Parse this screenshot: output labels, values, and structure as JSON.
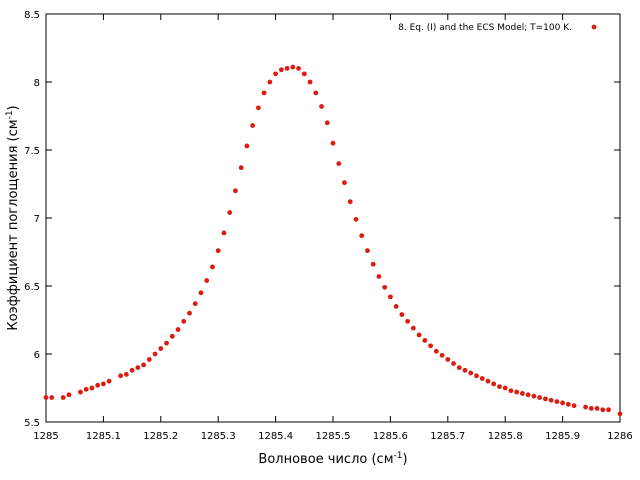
{
  "chart_data": {
    "type": "scatter",
    "xlabel": {
      "main": "Волновое число (см",
      "sup": "-1",
      "tail": ")"
    },
    "ylabel": {
      "main": "Коэффициент поглощения (см",
      "sup": "-1",
      "tail": ")"
    },
    "xlim": [
      1285,
      1286
    ],
    "ylim": [
      5.5,
      8.5
    ],
    "x_ticks": [
      "1285",
      "1285.1",
      "1285.2",
      "1285.3",
      "1285.4",
      "1285.5",
      "1285.6",
      "1285.7",
      "1285.8",
      "1285.9",
      "1286"
    ],
    "y_ticks": [
      "5.5",
      "6",
      "6.5",
      "7",
      "7.5",
      "8",
      "8.5"
    ],
    "grid": false,
    "legend_position": "top-right",
    "series": [
      {
        "name": "8. Eq. (I) and the ECS Model; T=100 K.",
        "color": "#dd1c0f",
        "marker": "dot",
        "points": [
          [
            1285.0,
            5.68
          ],
          [
            1285.01,
            5.68
          ],
          [
            1285.03,
            5.68
          ],
          [
            1285.04,
            5.7
          ],
          [
            1285.06,
            5.72
          ],
          [
            1285.07,
            5.74
          ],
          [
            1285.08,
            5.75
          ],
          [
            1285.09,
            5.77
          ],
          [
            1285.1,
            5.78
          ],
          [
            1285.11,
            5.8
          ],
          [
            1285.13,
            5.84
          ],
          [
            1285.14,
            5.85
          ],
          [
            1285.15,
            5.88
          ],
          [
            1285.16,
            5.9
          ],
          [
            1285.17,
            5.92
          ],
          [
            1285.18,
            5.96
          ],
          [
            1285.19,
            6.0
          ],
          [
            1285.2,
            6.04
          ],
          [
            1285.21,
            6.08
          ],
          [
            1285.22,
            6.13
          ],
          [
            1285.23,
            6.18
          ],
          [
            1285.24,
            6.24
          ],
          [
            1285.25,
            6.3
          ],
          [
            1285.26,
            6.37
          ],
          [
            1285.27,
            6.45
          ],
          [
            1285.28,
            6.54
          ],
          [
            1285.29,
            6.64
          ],
          [
            1285.3,
            6.76
          ],
          [
            1285.31,
            6.89
          ],
          [
            1285.32,
            7.04
          ],
          [
            1285.33,
            7.2
          ],
          [
            1285.34,
            7.37
          ],
          [
            1285.35,
            7.53
          ],
          [
            1285.36,
            7.68
          ],
          [
            1285.37,
            7.81
          ],
          [
            1285.38,
            7.92
          ],
          [
            1285.39,
            8.0
          ],
          [
            1285.4,
            8.06
          ],
          [
            1285.41,
            8.09
          ],
          [
            1285.42,
            8.1
          ],
          [
            1285.43,
            8.11
          ],
          [
            1285.44,
            8.1
          ],
          [
            1285.45,
            8.06
          ],
          [
            1285.46,
            8.0
          ],
          [
            1285.47,
            7.92
          ],
          [
            1285.48,
            7.82
          ],
          [
            1285.49,
            7.7
          ],
          [
            1285.5,
            7.55
          ],
          [
            1285.51,
            7.4
          ],
          [
            1285.52,
            7.26
          ],
          [
            1285.53,
            7.12
          ],
          [
            1285.54,
            6.99
          ],
          [
            1285.55,
            6.87
          ],
          [
            1285.56,
            6.76
          ],
          [
            1285.57,
            6.66
          ],
          [
            1285.58,
            6.57
          ],
          [
            1285.59,
            6.49
          ],
          [
            1285.6,
            6.42
          ],
          [
            1285.61,
            6.35
          ],
          [
            1285.62,
            6.29
          ],
          [
            1285.63,
            6.24
          ],
          [
            1285.64,
            6.19
          ],
          [
            1285.65,
            6.14
          ],
          [
            1285.66,
            6.1
          ],
          [
            1285.67,
            6.06
          ],
          [
            1285.68,
            6.02
          ],
          [
            1285.69,
            5.99
          ],
          [
            1285.7,
            5.96
          ],
          [
            1285.71,
            5.93
          ],
          [
            1285.72,
            5.9
          ],
          [
            1285.73,
            5.88
          ],
          [
            1285.74,
            5.86
          ],
          [
            1285.75,
            5.84
          ],
          [
            1285.76,
            5.82
          ],
          [
            1285.77,
            5.8
          ],
          [
            1285.78,
            5.78
          ],
          [
            1285.79,
            5.76
          ],
          [
            1285.8,
            5.75
          ],
          [
            1285.81,
            5.73
          ],
          [
            1285.82,
            5.72
          ],
          [
            1285.83,
            5.71
          ],
          [
            1285.84,
            5.7
          ],
          [
            1285.85,
            5.69
          ],
          [
            1285.86,
            5.68
          ],
          [
            1285.87,
            5.67
          ],
          [
            1285.88,
            5.66
          ],
          [
            1285.89,
            5.65
          ],
          [
            1285.9,
            5.64
          ],
          [
            1285.91,
            5.63
          ],
          [
            1285.92,
            5.62
          ],
          [
            1285.94,
            5.61
          ],
          [
            1285.95,
            5.6
          ],
          [
            1285.96,
            5.6
          ],
          [
            1285.97,
            5.59
          ],
          [
            1285.98,
            5.59
          ],
          [
            1286.0,
            5.56
          ]
        ]
      }
    ]
  }
}
